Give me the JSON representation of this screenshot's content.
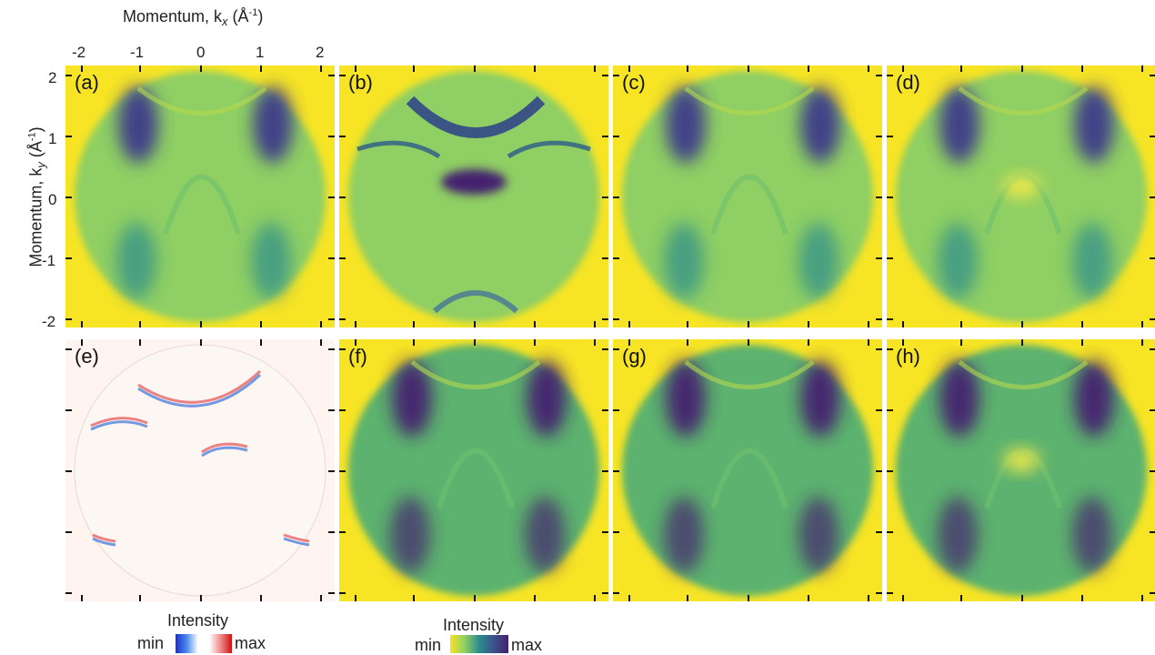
{
  "figure": {
    "x_axis_title": "Momentum, k",
    "x_axis_sub": "x",
    "x_axis_unit": " (Å",
    "x_axis_unit_sup": "-1",
    "x_axis_unit_end": ")",
    "y_axis_title": "Momentum, k",
    "y_axis_sub": "y",
    "y_axis_unit": " (Å",
    "y_axis_unit_sup": "-1",
    "y_axis_unit_end": ")",
    "x_ticks": [
      "-2",
      "-1",
      "0",
      "1",
      "2"
    ],
    "y_ticks": [
      "2",
      "1",
      "0",
      "-1",
      "-2"
    ]
  },
  "panels": [
    {
      "label": "(a)"
    },
    {
      "label": "(b)"
    },
    {
      "label": "(c)"
    },
    {
      "label": "(d)"
    },
    {
      "label": "(e)"
    },
    {
      "label": "(f)"
    },
    {
      "label": "(g)"
    },
    {
      "label": "(h)"
    }
  ],
  "colorbars": [
    {
      "title": "Intensity",
      "min": "min",
      "max": "max",
      "colormap": "blue-white-red"
    },
    {
      "title": "Intensity",
      "min": "min",
      "max": "max",
      "colormap": "yellow-green-purple"
    }
  ],
  "colors": {
    "background": "#f6e425",
    "green": "#8fcf63",
    "teal": "#2c8b8e",
    "purple": "#45206f",
    "diff_background": "#fff4ef"
  }
}
